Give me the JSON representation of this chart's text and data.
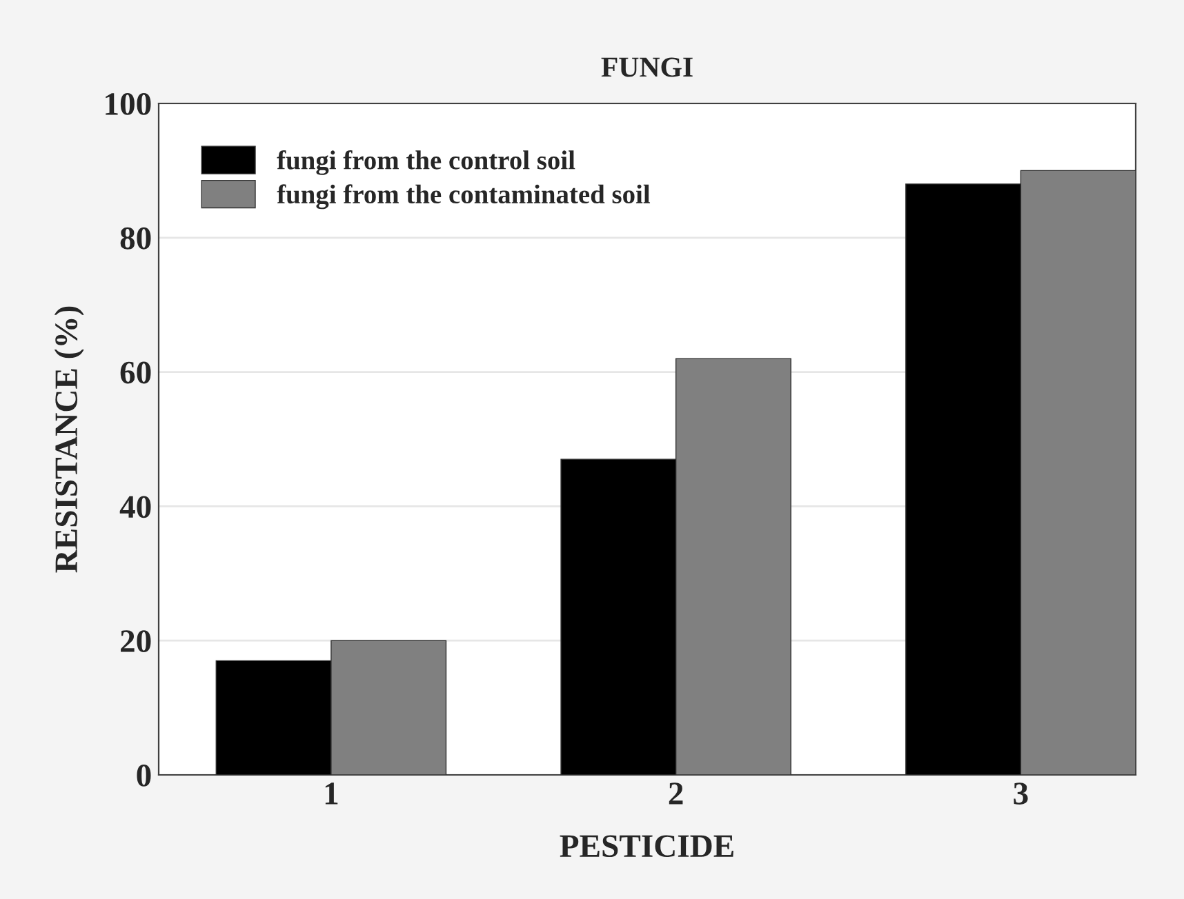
{
  "chart_data": {
    "type": "bar",
    "title": "FUNGI",
    "xlabel": "PESTICIDE",
    "ylabel": "RESISTANCE (%)",
    "categories": [
      "1",
      "2",
      "3"
    ],
    "series": [
      {
        "name": "fungi from the control soil",
        "color": "#000000",
        "values": [
          17,
          47,
          88
        ]
      },
      {
        "name": "fungi from the contaminated soil",
        "color": "#808080",
        "values": [
          20,
          62,
          90
        ]
      }
    ],
    "ylim": [
      0,
      100
    ],
    "yticks": [
      0,
      20,
      40,
      60,
      80,
      100
    ],
    "grid": "y",
    "legend": "top left"
  }
}
